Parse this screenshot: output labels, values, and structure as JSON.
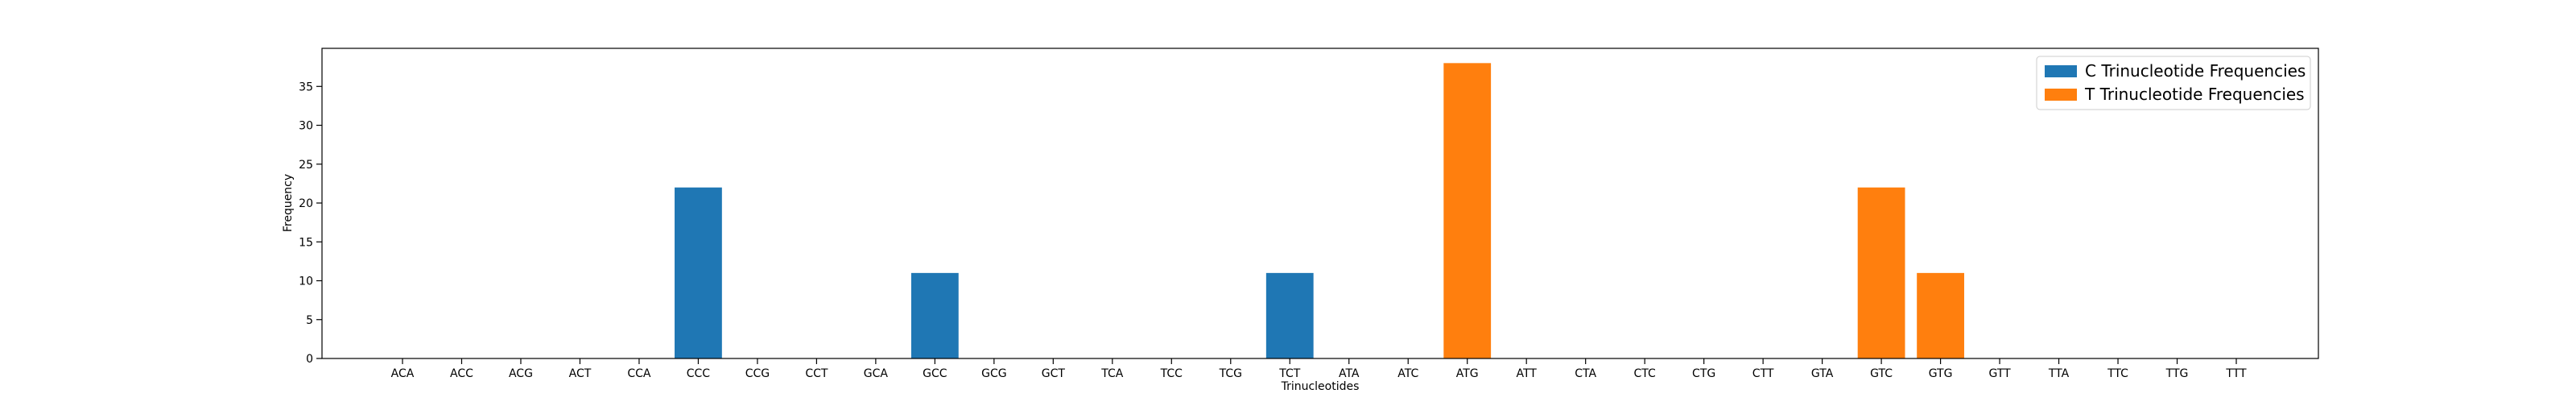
{
  "chart_data": {
    "type": "bar",
    "title": "",
    "xlabel": "Trinucleotides",
    "ylabel": "Frequency",
    "ylim": [
      0,
      39.9
    ],
    "yticks": [
      0,
      5,
      10,
      15,
      20,
      25,
      30,
      35
    ],
    "grid": false,
    "legend_position": "top-right",
    "categories": [
      "ACA",
      "ACC",
      "ACG",
      "ACT",
      "CCA",
      "CCC",
      "CCG",
      "CCT",
      "GCA",
      "GCC",
      "GCG",
      "GCT",
      "TCA",
      "TCC",
      "TCG",
      "TCT",
      "ATA",
      "ATC",
      "ATG",
      "ATT",
      "CTA",
      "CTC",
      "CTG",
      "CTT",
      "GTA",
      "GTC",
      "GTG",
      "GTT",
      "TTA",
      "TTC",
      "TTG",
      "TTT"
    ],
    "series": [
      {
        "name": "C Trinucleotide Frequencies",
        "color": "#1f77b4",
        "values": [
          0,
          0,
          0,
          0,
          0,
          22,
          0,
          0,
          0,
          11,
          0,
          0,
          0,
          0,
          0,
          11,
          null,
          null,
          null,
          null,
          null,
          null,
          null,
          null,
          null,
          null,
          null,
          null,
          null,
          null,
          null,
          null
        ]
      },
      {
        "name": "T Trinucleotide Frequencies",
        "color": "#ff7f0e",
        "values": [
          null,
          null,
          null,
          null,
          null,
          null,
          null,
          null,
          null,
          null,
          null,
          null,
          null,
          null,
          null,
          null,
          0,
          0,
          38,
          0,
          0,
          0,
          0,
          0,
          0,
          22,
          11,
          0,
          0,
          0,
          0,
          0
        ]
      }
    ]
  }
}
